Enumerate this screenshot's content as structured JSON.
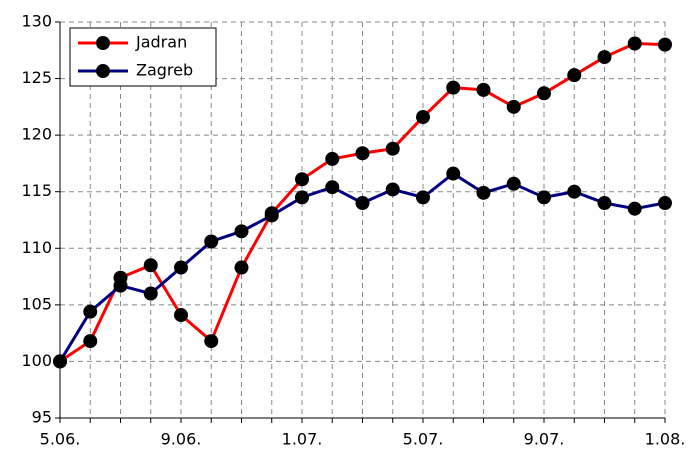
{
  "chart_data": {
    "type": "line",
    "categories": [
      "5.06.",
      null,
      null,
      null,
      "9.06.",
      null,
      null,
      null,
      "1.07.",
      null,
      null,
      null,
      "5.07.",
      null,
      null,
      null,
      "9.07.",
      null,
      null,
      null,
      "1.08."
    ],
    "series": [
      {
        "name": "Jadran",
        "color": "#ff0000",
        "values": [
          100,
          101.8,
          107.4,
          108.5,
          104.1,
          101.8,
          108.3,
          113.1,
          116.1,
          117.9,
          118.4,
          118.8,
          121.6,
          124.2,
          124.0,
          122.5,
          123.7,
          125.3,
          126.9,
          128.1,
          128.0
        ]
      },
      {
        "name": "Zagreb",
        "color": "#000080",
        "values": [
          100,
          104.4,
          106.7,
          106.0,
          108.3,
          110.6,
          111.5,
          112.9,
          114.5,
          115.4,
          114.0,
          115.2,
          114.5,
          116.6,
          114.9,
          115.7,
          114.5,
          115.0,
          114.0,
          113.5,
          114.0
        ]
      }
    ],
    "ylim": [
      95,
      130
    ],
    "yticks": [
      95,
      100,
      105,
      110,
      115,
      120,
      125,
      130
    ],
    "grid": true,
    "legend": "upper-left"
  }
}
